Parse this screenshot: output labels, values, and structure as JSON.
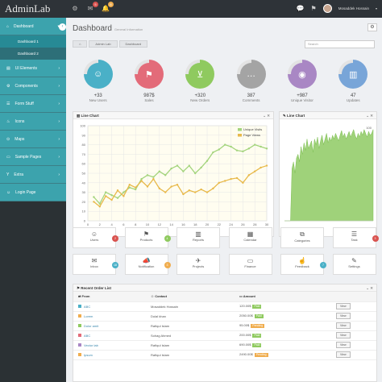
{
  "app": {
    "logo": "AdminLab"
  },
  "topbar": {
    "badges": [
      "5",
      "8",
      "8"
    ],
    "user_name": "Mosaddek Hossain",
    "badge_colors": [
      "#d9534f",
      "#d9534f",
      "#f0ad4e"
    ]
  },
  "sidebar": {
    "items": [
      {
        "label": "Dashboard",
        "icon": "home-icon"
      },
      {
        "label": "Dashboard 1",
        "sub": true,
        "active": true
      },
      {
        "label": "Dashboard 2",
        "sub": true
      },
      {
        "label": "UI Elements",
        "icon": "book-icon"
      },
      {
        "label": "Components",
        "icon": "cogs-icon"
      },
      {
        "label": "Form Stuff",
        "icon": "tasks-icon"
      },
      {
        "label": "Icons",
        "icon": "fire-icon"
      },
      {
        "label": "Maps",
        "icon": "map-marker-icon"
      },
      {
        "label": "Sample Pages",
        "icon": "file-icon"
      },
      {
        "label": "Extra",
        "icon": "glass-icon"
      },
      {
        "label": "Login Page",
        "icon": "user-icon"
      }
    ]
  },
  "header": {
    "title": "Dashboard",
    "subtitle": "General Information"
  },
  "breadcrumb": [
    "Admin Lab",
    "Dashboard"
  ],
  "search": {
    "placeholder": "Search"
  },
  "stats": [
    {
      "value": "+33",
      "label": "New Users",
      "color": "#4ab0c7",
      "icon": "user-icon"
    },
    {
      "value": "987$",
      "label": "Sales",
      "color": "#e36b79",
      "icon": "tag-icon"
    },
    {
      "value": "+320",
      "label": "New Orders",
      "color": "#8fca5f",
      "icon": "cart-icon"
    },
    {
      "value": "387",
      "label": "Comments",
      "color": "#a4a4a4",
      "icon": "comment-icon"
    },
    {
      "value": "+987",
      "label": "Unique Visitor",
      "color": "#a987c4",
      "icon": "eye-icon"
    },
    {
      "value": "47",
      "label": "Updates",
      "color": "#78a5d8",
      "icon": "chart-icon"
    }
  ],
  "line_chart_1": {
    "title": "Line Chart"
  },
  "line_chart_2": {
    "title": "Line Chart"
  },
  "chart_data": [
    {
      "type": "line",
      "x": [
        1,
        2,
        3,
        4,
        5,
        6,
        7,
        8,
        9,
        10,
        11,
        12,
        13,
        14,
        15,
        16,
        17,
        18,
        19,
        20,
        21,
        22,
        23,
        24,
        25,
        26,
        27,
        28,
        29,
        30
      ],
      "series": [
        {
          "name": "Unique Visits",
          "color": "#a3d47c",
          "values": [
            25,
            18,
            30,
            27,
            24,
            30,
            35,
            33,
            44,
            48,
            46,
            52,
            48,
            55,
            58,
            52,
            58,
            50,
            56,
            63,
            72,
            75,
            80,
            78,
            74,
            73,
            76,
            80,
            78,
            76
          ]
        },
        {
          "name": "Page Views",
          "color": "#e8b94a",
          "values": [
            20,
            15,
            26,
            22,
            32,
            26,
            38,
            35,
            42,
            36,
            44,
            34,
            30,
            36,
            38,
            28,
            32,
            30,
            33,
            30,
            34,
            40,
            42,
            44,
            45,
            40,
            48,
            52,
            56,
            58
          ]
        }
      ],
      "xlim": [
        0,
        30
      ],
      "ylim": [
        0,
        100
      ],
      "xticks": [
        0,
        2,
        4,
        6,
        8,
        10,
        12,
        14,
        16,
        18,
        20,
        22,
        24,
        26,
        28,
        30
      ],
      "yticks": [
        0,
        10,
        20,
        30,
        40,
        50,
        60,
        70,
        80,
        90,
        100
      ],
      "grid": true,
      "legend": "top-right"
    },
    {
      "type": "area",
      "series": [
        {
          "color": "#9fd27a",
          "values": [
            0,
            0,
            0,
            0,
            0,
            55,
            62,
            50,
            66,
            70,
            62,
            78,
            70,
            82,
            74,
            86,
            76,
            80,
            84,
            72,
            86,
            80,
            88,
            76,
            84,
            90,
            80,
            86,
            92,
            82,
            88,
            84,
            90,
            86,
            92,
            88,
            84,
            90,
            95,
            88,
            92,
            86,
            90,
            94,
            88,
            92,
            96,
            90,
            86,
            92,
            88,
            94,
            90,
            96,
            92,
            88,
            94,
            90,
            92,
            96
          ]
        }
      ],
      "ylim": [
        0,
        100
      ],
      "ytick_top": "100"
    }
  ],
  "shortcuts": [
    {
      "label": "Users",
      "icon": "user-icon",
      "badge": "2",
      "badge_color": "#d9534f"
    },
    {
      "label": "Products",
      "icon": "tags-icon",
      "badge": "4",
      "badge_color": "#8fca5f"
    },
    {
      "label": "Reports",
      "icon": "bar-chart-icon"
    },
    {
      "label": "Calendar",
      "icon": "calendar-icon"
    },
    {
      "label": "Categories",
      "icon": "sitemap-icon"
    },
    {
      "label": "Task",
      "icon": "tasks-icon",
      "badge": "3",
      "badge_color": "#d9534f"
    },
    {
      "label": "Inbox",
      "icon": "envelope-icon",
      "badge": "18",
      "badge_color": "#4ab0c7"
    },
    {
      "label": "Notification",
      "icon": "bullhorn-icon",
      "badge": "3",
      "badge_color": "#f0ad4e"
    },
    {
      "label": "Projects",
      "icon": "plane-icon"
    },
    {
      "label": "Finance",
      "icon": "money-icon"
    },
    {
      "label": "Feedback",
      "icon": "thumbs-up-icon",
      "badge": "7",
      "badge_color": "#4ab0c7"
    },
    {
      "label": "Settings",
      "icon": "wrench-icon"
    }
  ],
  "orders": {
    "title": "Recent Order List",
    "columns": [
      "From",
      "Contact",
      "Amount"
    ],
    "rows": [
      {
        "from": "ABC",
        "contact": "Mosaddek Hossain",
        "amount": "120.00$",
        "status": "Paid",
        "status_color": "#8fca5f",
        "dot": "#4ab0c7"
      },
      {
        "from": "Lorem",
        "contact": "Dulal khan",
        "amount": "2050.00$",
        "status": "Paid",
        "status_color": "#8fca5f",
        "dot": "#f0ad4e"
      },
      {
        "from": "Dolor amit",
        "contact": "Rafiqul Islam",
        "amount": "95.00$",
        "status": "Pending",
        "status_color": "#f0ad4e",
        "dot": "#8fca5f"
      },
      {
        "from": "ABC",
        "contact": "Sohag Ahmed",
        "amount": "200.00$",
        "status": "Paid",
        "status_color": "#8fca5f",
        "dot": "#e36b79"
      },
      {
        "from": "Vector lab",
        "contact": "Rafiqul Islam",
        "amount": "690.00$",
        "status": "Paid",
        "status_color": "#8fca5f",
        "dot": "#a987c4"
      },
      {
        "from": "Ipsum",
        "contact": "Rafiqul Islam",
        "amount": "2490.00$",
        "status": "Pending",
        "status_color": "#f0ad4e",
        "dot": "#f0ad4e"
      }
    ],
    "view_label": "View"
  }
}
